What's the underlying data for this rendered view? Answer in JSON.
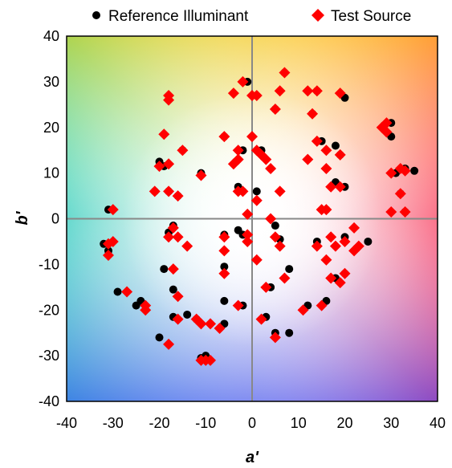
{
  "chart_data": {
    "type": "scatter",
    "xlabel": "a'",
    "ylabel": "b'",
    "xlim": [
      -40,
      40
    ],
    "ylim": [
      -40,
      40
    ],
    "xticks": [
      "-40",
      "-30",
      "-20",
      "-10",
      "0",
      "10",
      "20",
      "30",
      "40"
    ],
    "yticks": [
      "-40",
      "-30",
      "-20",
      "-10",
      "0",
      "10",
      "20",
      "30",
      "40"
    ],
    "grid": false,
    "zero_lines": true,
    "background": "CIELAB a'-b' color-space gradient",
    "legend": {
      "placement": "top",
      "entries": [
        "Reference Illuminant",
        "Test Source"
      ]
    },
    "series": [
      {
        "name": "Reference Illuminant",
        "marker": "circle",
        "color": "#000000",
        "points": [
          [
            -1,
            30
          ],
          [
            -6,
            18
          ],
          [
            -2,
            15
          ],
          [
            1,
            6
          ],
          [
            2,
            15
          ],
          [
            7,
            32
          ],
          [
            5,
            24
          ],
          [
            13,
            23
          ],
          [
            14,
            28
          ],
          [
            15,
            17
          ],
          [
            20,
            26.5
          ],
          [
            19,
            14
          ],
          [
            18,
            16
          ],
          [
            18,
            8
          ],
          [
            20,
            7
          ],
          [
            16,
            2
          ],
          [
            14,
            -5
          ],
          [
            18,
            -13
          ],
          [
            20,
            -4
          ],
          [
            20,
            -12
          ],
          [
            25,
            -5
          ],
          [
            30,
            21
          ],
          [
            30,
            18
          ],
          [
            31,
            10
          ],
          [
            33,
            11
          ],
          [
            35,
            10.5
          ],
          [
            33,
            1.5
          ],
          [
            32,
            5.5
          ],
          [
            -31,
            2
          ],
          [
            -32,
            -5.5
          ],
          [
            -31,
            -7
          ],
          [
            -29,
            -16
          ],
          [
            -25,
            -19
          ],
          [
            -24,
            -18
          ],
          [
            -20,
            -26
          ],
          [
            -19,
            -11
          ],
          [
            -18,
            -3
          ],
          [
            -17,
            -1.5
          ],
          [
            -17,
            -15.5
          ],
          [
            -17,
            -21.5
          ],
          [
            -14,
            -21
          ],
          [
            -12,
            -22
          ],
          [
            -10,
            -30
          ],
          [
            -11,
            -30.5
          ],
          [
            -6,
            -23
          ],
          [
            -6,
            -18
          ],
          [
            -6,
            -3.5
          ],
          [
            -6,
            -10.5
          ],
          [
            -2,
            -3.5
          ],
          [
            -3,
            -2.5
          ],
          [
            -2,
            -19
          ],
          [
            3,
            -21.5
          ],
          [
            8,
            -25
          ],
          [
            8,
            -11
          ],
          [
            5,
            -1.5
          ],
          [
            6,
            -4.5
          ],
          [
            12,
            -19
          ],
          [
            16,
            -18
          ],
          [
            -20,
            12.5
          ],
          [
            -19,
            11.5
          ],
          [
            -15,
            15
          ],
          [
            -11,
            10
          ],
          [
            -21,
            6
          ],
          [
            -18,
            6
          ],
          [
            -16,
            5
          ],
          [
            -3,
            7
          ],
          [
            -2,
            6
          ],
          [
            4,
            -15
          ],
          [
            5,
            -25
          ]
        ]
      },
      {
        "name": "Test Source",
        "marker": "diamond",
        "color": "#ff0000",
        "points": [
          [
            -2,
            30
          ],
          [
            -4,
            27.5
          ],
          [
            0,
            27
          ],
          [
            1,
            27
          ],
          [
            7,
            32
          ],
          [
            6,
            28
          ],
          [
            5,
            24
          ],
          [
            12,
            28
          ],
          [
            13,
            23
          ],
          [
            14,
            28
          ],
          [
            19,
            27.5
          ],
          [
            0,
            18
          ],
          [
            -6,
            18
          ],
          [
            -3,
            15
          ],
          [
            -4,
            12
          ],
          [
            -3,
            13
          ],
          [
            1,
            15
          ],
          [
            2,
            14
          ],
          [
            3,
            13
          ],
          [
            4,
            11
          ],
          [
            6,
            6
          ],
          [
            -3,
            6
          ],
          [
            -2,
            6
          ],
          [
            1,
            4
          ],
          [
            -1,
            1
          ],
          [
            4,
            0
          ],
          [
            14,
            17
          ],
          [
            16,
            15
          ],
          [
            19,
            14
          ],
          [
            12,
            13
          ],
          [
            16,
            11
          ],
          [
            17,
            7
          ],
          [
            19,
            7
          ],
          [
            15,
            2
          ],
          [
            16,
            2
          ],
          [
            22,
            -2
          ],
          [
            20,
            -5
          ],
          [
            17,
            -4
          ],
          [
            14,
            -6
          ],
          [
            18,
            -6
          ],
          [
            16,
            -9
          ],
          [
            20,
            -12
          ],
          [
            17,
            -13
          ],
          [
            19,
            -14
          ],
          [
            15,
            -19
          ],
          [
            11,
            -20
          ],
          [
            5,
            -26
          ],
          [
            7,
            -13
          ],
          [
            6,
            -6
          ],
          [
            5,
            -4
          ],
          [
            3,
            -15
          ],
          [
            1,
            -9
          ],
          [
            2,
            -22
          ],
          [
            -3,
            -19
          ],
          [
            -1,
            -5
          ],
          [
            -1,
            -3.5
          ],
          [
            -6,
            -4
          ],
          [
            -6,
            -7
          ],
          [
            -6,
            -12
          ],
          [
            -9,
            -23
          ],
          [
            -11,
            -23
          ],
          [
            -12,
            -22
          ],
          [
            -7,
            -24
          ],
          [
            -10,
            -31
          ],
          [
            -11,
            -31
          ],
          [
            -9,
            -31
          ],
          [
            -16,
            -22
          ],
          [
            -18,
            -27.5
          ],
          [
            -16,
            -17
          ],
          [
            -17,
            -11
          ],
          [
            -18,
            -4
          ],
          [
            -16,
            -4
          ],
          [
            -14,
            -6
          ],
          [
            -17,
            -2
          ],
          [
            -23,
            -19
          ],
          [
            -23,
            -20
          ],
          [
            -27,
            -16
          ],
          [
            -31,
            -5.5
          ],
          [
            -30,
            -5
          ],
          [
            -31,
            -8
          ],
          [
            -30,
            2
          ],
          [
            -21,
            6
          ],
          [
            -18,
            6
          ],
          [
            -16,
            5
          ],
          [
            -20,
            11.5
          ],
          [
            -18,
            12
          ],
          [
            -15,
            15
          ],
          [
            -11,
            9.5
          ],
          [
            -18,
            26
          ],
          [
            -18,
            27
          ],
          [
            -19,
            18.5
          ],
          [
            28,
            20
          ],
          [
            29,
            21
          ],
          [
            29,
            19
          ],
          [
            30,
            10
          ],
          [
            32,
            11
          ],
          [
            33,
            10.5
          ],
          [
            32,
            5.5
          ],
          [
            30,
            1.5
          ],
          [
            33,
            1.5
          ],
          [
            22,
            -7
          ],
          [
            23,
            -6
          ]
        ]
      }
    ]
  }
}
